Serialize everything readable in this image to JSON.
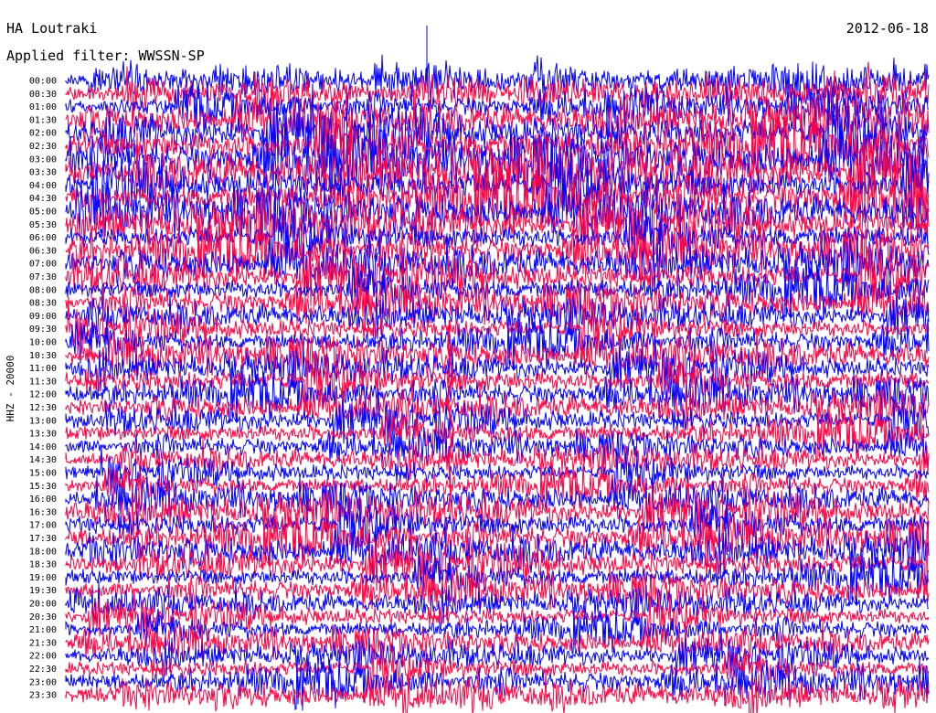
{
  "header": {
    "station": "HA Loutraki",
    "date": "2012-06-18",
    "filter_label": "Applied filter: WWSSN-SP"
  },
  "y_axis_label": "HHZ - 20000",
  "colors": {
    "trace_a": "#0000ff",
    "trace_b": "#ff0040",
    "background": "#ffffff",
    "text": "#000000"
  },
  "chart_data": {
    "type": "helicorder",
    "title": "HA Loutraki",
    "channel": "HHZ - 20000",
    "date": "2012-06-18",
    "filter": "WWSSN-SP",
    "rows": [
      "00:00",
      "00:30",
      "01:00",
      "01:30",
      "02:00",
      "02:30",
      "03:00",
      "03:30",
      "04:00",
      "04:30",
      "05:00",
      "05:30",
      "06:00",
      "06:30",
      "07:00",
      "07:30",
      "08:00",
      "08:30",
      "09:00",
      "09:30",
      "10:00",
      "10:30",
      "11:00",
      "11:30",
      "12:00",
      "12:30",
      "13:00",
      "13:30",
      "14:00",
      "14:30",
      "15:00",
      "15:30",
      "16:00",
      "16:30",
      "17:00",
      "17:30",
      "18:00",
      "18:30",
      "19:00",
      "19:30",
      "20:00",
      "20:30",
      "21:00",
      "21:30",
      "22:00",
      "22:30",
      "23:00",
      "23:30"
    ],
    "row_noise_level": [
      0.3,
      0.4,
      0.4,
      0.6,
      0.8,
      0.9,
      0.8,
      0.9,
      0.8,
      0.9,
      0.7,
      0.7,
      0.6,
      0.6,
      0.6,
      0.6,
      0.5,
      0.5,
      0.4,
      0.4,
      0.4,
      0.5,
      0.4,
      0.5,
      0.4,
      0.4,
      0.4,
      0.4,
      0.3,
      0.3,
      0.3,
      0.3,
      0.4,
      0.5,
      0.5,
      0.5,
      0.5,
      0.5,
      0.4,
      0.4,
      0.3,
      0.3,
      0.3,
      0.3,
      0.3,
      0.3,
      0.4,
      0.4
    ],
    "trace_colors": [
      "blue",
      "red"
    ]
  }
}
